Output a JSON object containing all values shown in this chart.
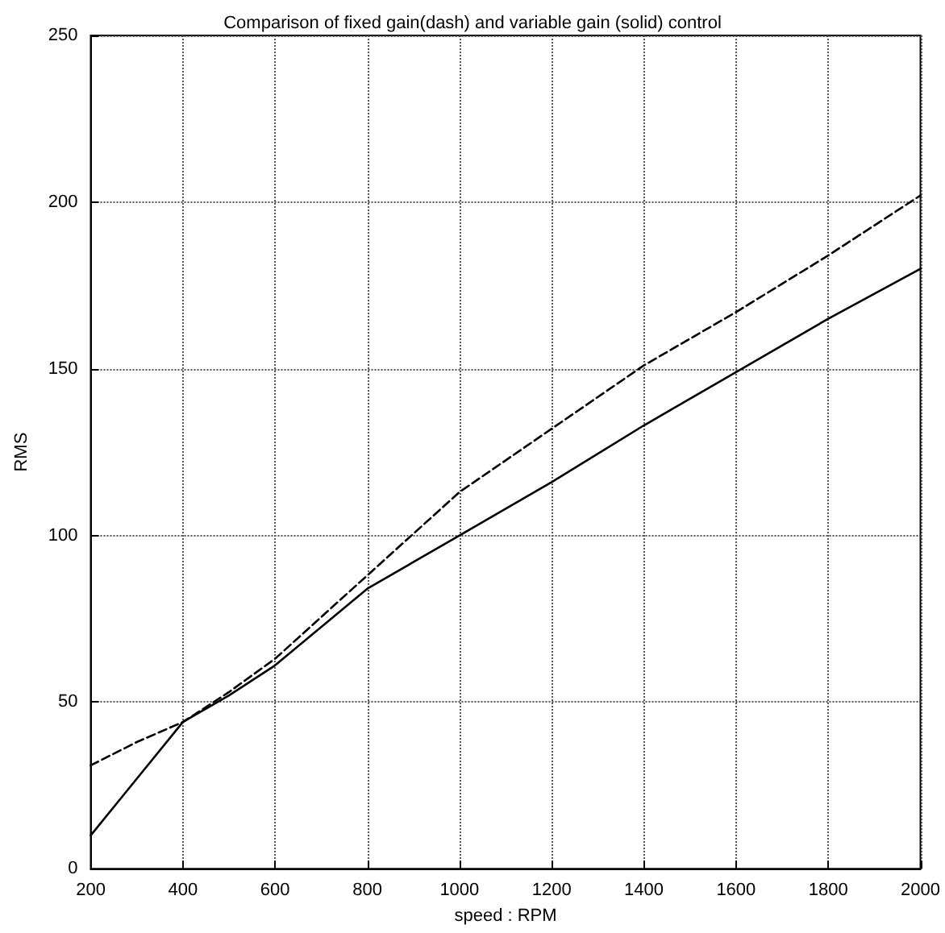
{
  "chart_data": {
    "type": "line",
    "title": "Comparison of fixed gain(dash) and variable gain (solid) control",
    "xlabel": "speed : RPM",
    "ylabel": "RMS",
    "x": [
      200,
      300,
      400,
      500,
      600,
      800,
      1000,
      1200,
      1400,
      1600,
      1800,
      2000
    ],
    "series": [
      {
        "color": "#000000",
        "line_style": "dashed",
        "values": [
          31,
          38,
          44,
          53,
          63,
          88,
          113,
          132,
          151,
          167,
          184,
          202
        ]
      },
      {
        "color": "#000000",
        "line_style": "solid",
        "values": [
          10,
          27,
          44,
          52,
          61,
          84,
          100,
          116,
          133,
          149,
          165,
          180
        ]
      }
    ],
    "xlim": [
      200,
      2000
    ],
    "xticks": [
      200,
      400,
      600,
      800,
      1000,
      1200,
      1400,
      1600,
      1800,
      2000
    ],
    "ylim": [
      0,
      250
    ],
    "yticks": [
      0,
      50,
      100,
      150,
      200,
      250
    ],
    "grid": true,
    "marker": "none"
  }
}
